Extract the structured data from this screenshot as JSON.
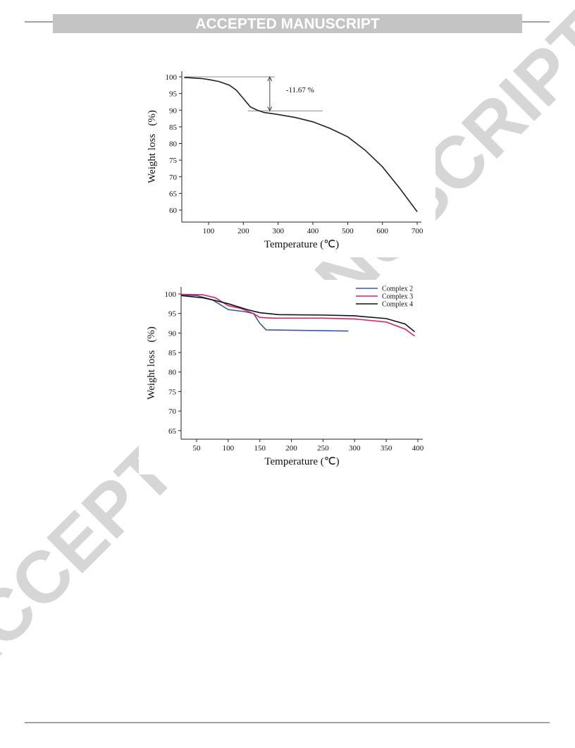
{
  "header": {
    "title": "ACCEPTED MANUSCRIPT"
  },
  "watermark": "ACCEPTED MANUSCRIPT",
  "chart_data": [
    {
      "type": "line",
      "xlabel": "Temperature (℃)",
      "ylabel": "Weight loss   (%)",
      "xlim": [
        23,
        712
      ],
      "ylim": [
        56.4,
        101.7
      ],
      "xticks": [
        100,
        200,
        300,
        400,
        500,
        600,
        700
      ],
      "yticks": [
        60,
        65,
        70,
        75,
        80,
        85,
        90,
        95,
        100
      ],
      "series": [
        {
          "color": "#222222",
          "x": [
            30,
            50,
            80,
            100,
            130,
            160,
            180,
            200,
            220,
            240,
            260,
            300,
            350,
            400,
            450,
            500,
            550,
            600,
            650,
            700
          ],
          "values": [
            99.8,
            99.7,
            99.5,
            99.2,
            98.6,
            97.5,
            96,
            93.5,
            91,
            90,
            89.3,
            88.7,
            87.8,
            86.5,
            84.5,
            82,
            78,
            73,
            66.5,
            59.5
          ]
        }
      ],
      "reference_lines": [
        {
          "y": 100,
          "x": [
            30,
            290
          ]
        },
        {
          "y": 89.8,
          "x": [
            213,
            428
          ]
        }
      ],
      "annotation": {
        "text": "-11.67 %",
        "x": 276,
        "y": [
          100,
          89.8
        ]
      }
    },
    {
      "type": "line",
      "xlabel": "Temperature (℃)",
      "ylabel": "Weight loss   (%)",
      "xlim": [
        25.5,
        407.8
      ],
      "ylim": [
        62.8,
        101.8
      ],
      "xticks": [
        50,
        100,
        150,
        200,
        250,
        300,
        350,
        400
      ],
      "yticks": [
        65,
        70,
        75,
        80,
        85,
        90,
        95,
        100
      ],
      "legend": "upper right",
      "series": [
        {
          "name": "Complex 2",
          "color": "#3a5a9a",
          "x": [
            25,
            50,
            75,
            100,
            125,
            140,
            150,
            160,
            200,
            250,
            290
          ],
          "values": [
            99.7,
            99.6,
            98.5,
            96,
            95.5,
            95,
            92.5,
            90.8,
            90.7,
            90.6,
            90.5
          ]
        },
        {
          "name": "Complex 3",
          "color": "#d6246b",
          "x": [
            25,
            60,
            80,
            100,
            120,
            140,
            150,
            170,
            250,
            300,
            350,
            380,
            395
          ],
          "values": [
            99.9,
            99.8,
            99,
            97,
            96.3,
            95,
            94,
            93.8,
            93.8,
            93.6,
            92.8,
            91,
            89.2
          ]
        },
        {
          "name": "Complex 4",
          "color": "#111111",
          "x": [
            25,
            60,
            80,
            100,
            130,
            150,
            180,
            250,
            300,
            350,
            380,
            395
          ],
          "values": [
            99.6,
            99,
            98.3,
            97.5,
            96,
            95.2,
            94.7,
            94.6,
            94.4,
            93.7,
            92.3,
            90.3
          ]
        }
      ]
    }
  ]
}
